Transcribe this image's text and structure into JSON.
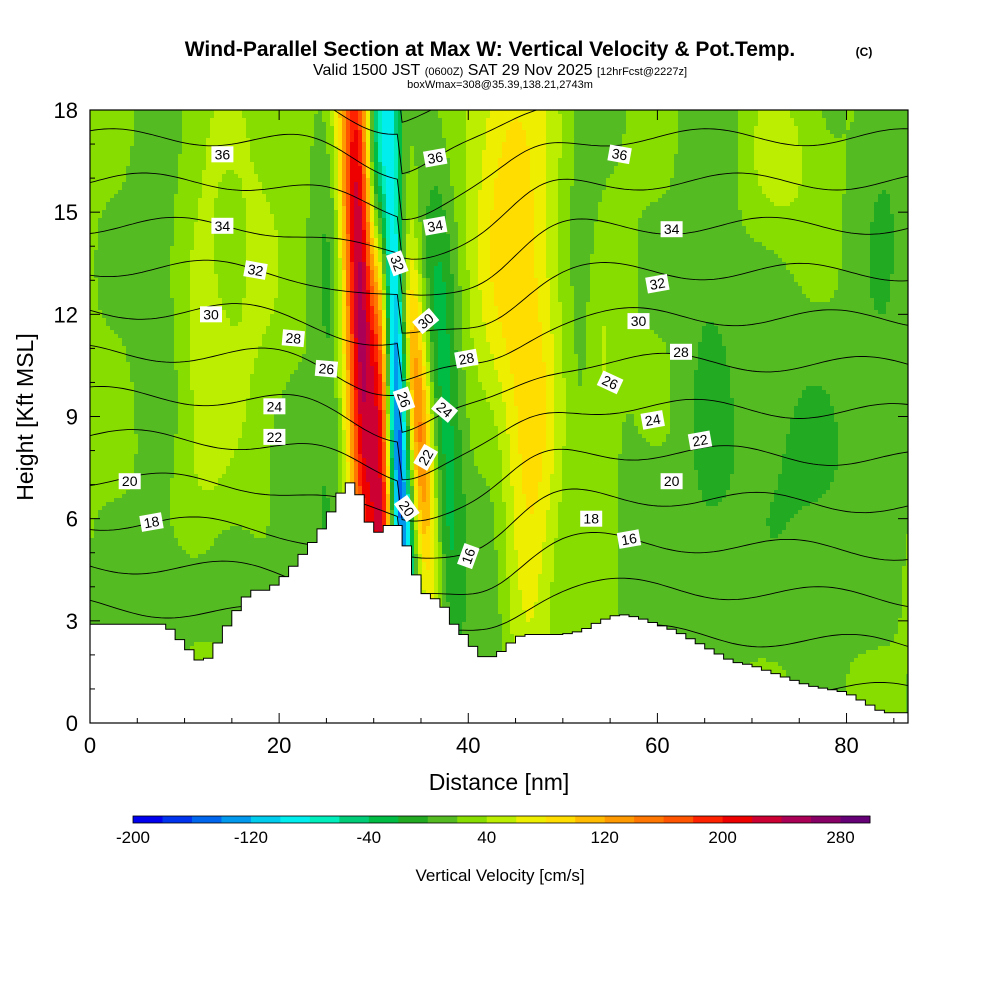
{
  "chart_data": {
    "type": "heatmap",
    "title": "Wind-Parallel Section at Max W: Vertical Velocity & Pot.Temp.",
    "title_mark": "(C)",
    "subtitle": {
      "valid": "Valid 1500 JST",
      "zulu": "(0600Z)",
      "date": "SAT 29 Nov 2025",
      "forecast": "[12hrFcst@2227z]",
      "box": "boxWmax=308@35.39,138.21,2743m"
    },
    "xlabel": "Distance [nm]",
    "ylabel": "Height [Kft MSL]",
    "xlim": [
      0,
      86.5
    ],
    "ylim": [
      0,
      18
    ],
    "x_ticks": [
      0,
      20,
      40,
      60,
      80
    ],
    "x_tick_labels": [
      "0",
      "20",
      "40",
      "60",
      "80"
    ],
    "y_ticks": [
      0,
      3,
      6,
      9,
      12,
      15,
      18
    ],
    "y_tick_labels": [
      "0",
      "3",
      "6",
      "9",
      "12",
      "15",
      "18"
    ],
    "colorbar": {
      "label": "Vertical Velocity [cm/s]",
      "min": -200,
      "max": 300,
      "step": 20,
      "tick_values": [
        -200,
        -120,
        -40,
        40,
        120,
        200,
        280
      ],
      "tick_labels": [
        "-200",
        "-120",
        "-40",
        "40",
        "120",
        "200",
        "280"
      ],
      "colors": [
        "#0000ee",
        "#0033ee",
        "#0066ee",
        "#0099ee",
        "#00ccee",
        "#00eeee",
        "#00eebb",
        "#00cc77",
        "#00bb44",
        "#22aa22",
        "#55bb22",
        "#88dd00",
        "#bbee00",
        "#eeee00",
        "#ffdd00",
        "#ffbb00",
        "#ff9900",
        "#ff7700",
        "#ff5500",
        "#ff2200",
        "#ee0000",
        "#cc0033",
        "#aa0055",
        "#880066",
        "#660077"
      ]
    },
    "terrain": [
      [
        0,
        2.9
      ],
      [
        2,
        2.9
      ],
      [
        4,
        2.9
      ],
      [
        6,
        2.9
      ],
      [
        8,
        2.9
      ],
      [
        9,
        2.6
      ],
      [
        10,
        2.3
      ],
      [
        11,
        2.0
      ],
      [
        12,
        1.7
      ],
      [
        13,
        2.1
      ],
      [
        14,
        2.6
      ],
      [
        15,
        3.1
      ],
      [
        16,
        3.5
      ],
      [
        17,
        3.9
      ],
      [
        18,
        3.9
      ],
      [
        19,
        3.9
      ],
      [
        20,
        4.2
      ],
      [
        21,
        4.4
      ],
      [
        22,
        4.8
      ],
      [
        23,
        5.1
      ],
      [
        24,
        5.5
      ],
      [
        25,
        5.9
      ],
      [
        26,
        6.5
      ],
      [
        27,
        7.0
      ],
      [
        28,
        7.1
      ],
      [
        29,
        6.3
      ],
      [
        30,
        5.5
      ],
      [
        31,
        5.7
      ],
      [
        32,
        5.9
      ],
      [
        33,
        5.7
      ],
      [
        34,
        4.7
      ],
      [
        35,
        4.0
      ],
      [
        36,
        3.6
      ],
      [
        37,
        3.7
      ],
      [
        38,
        3.1
      ],
      [
        39,
        2.7
      ],
      [
        40,
        2.5
      ],
      [
        41,
        2.0
      ],
      [
        42,
        1.9
      ],
      [
        43,
        2.0
      ],
      [
        44,
        2.2
      ],
      [
        45,
        2.5
      ],
      [
        46,
        2.6
      ],
      [
        48,
        2.6
      ],
      [
        50,
        2.6
      ],
      [
        52,
        2.7
      ],
      [
        54,
        3.0
      ],
      [
        56,
        3.2
      ],
      [
        58,
        3.1
      ],
      [
        60,
        2.9
      ],
      [
        62,
        2.7
      ],
      [
        64,
        2.4
      ],
      [
        66,
        2.1
      ],
      [
        68,
        1.8
      ],
      [
        70,
        1.7
      ],
      [
        72,
        1.5
      ],
      [
        74,
        1.3
      ],
      [
        76,
        1.1
      ],
      [
        78,
        1.0
      ],
      [
        80,
        0.9
      ],
      [
        82,
        0.6
      ],
      [
        84,
        0.3
      ],
      [
        86.5,
        0.3
      ]
    ],
    "w_features": [
      {
        "x": 28.7,
        "y": 12.0,
        "sx": 1.3,
        "sy": 8.0,
        "w": 230,
        "tilt": -0.12
      },
      {
        "x": 31.0,
        "y": 11.0,
        "sx": 0.8,
        "sy": 9.0,
        "w": 170,
        "tilt": -0.05
      },
      {
        "x": 32.2,
        "y": 10.5,
        "sx": 1.0,
        "sy": 8.5,
        "w": -230,
        "tilt": -0.12
      },
      {
        "x": 30.3,
        "y": 16.5,
        "sx": 0.8,
        "sy": 3.0,
        "w": -140,
        "tilt": 0.0
      },
      {
        "x": 34.6,
        "y": 9.0,
        "sx": 1.1,
        "sy": 4.0,
        "w": 140,
        "tilt": -0.25
      },
      {
        "x": 37.5,
        "y": 9.0,
        "sx": 1.4,
        "sy": 5.0,
        "w": -60,
        "tilt": -0.15
      },
      {
        "x": 44.5,
        "y": 14.5,
        "sx": 3.0,
        "sy": 6.0,
        "w": 70,
        "tilt": 0.0
      },
      {
        "x": 47.0,
        "y": 6.5,
        "sx": 1.8,
        "sy": 5.0,
        "w": 40,
        "tilt": 0.1
      },
      {
        "x": 42.5,
        "y": 5.0,
        "sx": 1.5,
        "sy": 3.5,
        "w": -30,
        "tilt": 0.0
      },
      {
        "x": 54.0,
        "y": 9.5,
        "sx": 1.2,
        "sy": 3.5,
        "w": 30,
        "tilt": 0.0
      },
      {
        "x": 52.5,
        "y": 14.0,
        "sx": 1.5,
        "sy": 4.0,
        "w": -20,
        "tilt": 0.0
      },
      {
        "x": 12.0,
        "y": 10.5,
        "sx": 2.0,
        "sy": 6.0,
        "w": 25,
        "tilt": 0.0
      },
      {
        "x": 17.5,
        "y": 13.0,
        "sx": 2.5,
        "sy": 7.0,
        "w": 20,
        "tilt": 0.0
      },
      {
        "x": 7.0,
        "y": 13.5,
        "sx": 1.8,
        "sy": 4.0,
        "w": -20,
        "tilt": 0.0
      },
      {
        "x": 22.0,
        "y": 7.0,
        "sx": 3.0,
        "sy": 2.0,
        "w": -18,
        "tilt": 0.0
      },
      {
        "x": 13.0,
        "y": 4.0,
        "sx": 6.0,
        "sy": 1.5,
        "w": -22,
        "tilt": 0.0
      },
      {
        "x": 25.5,
        "y": 13.0,
        "sx": 1.2,
        "sy": 5.0,
        "w": -28,
        "tilt": 0.0
      },
      {
        "x": 65.5,
        "y": 12.0,
        "sx": 2.0,
        "sy": 7.0,
        "w": -22,
        "tilt": 0.0
      },
      {
        "x": 75.0,
        "y": 7.5,
        "sx": 6.0,
        "sy": 3.0,
        "w": -25,
        "tilt": 0.0
      },
      {
        "x": 73.0,
        "y": 16.5,
        "sx": 2.5,
        "sy": 1.5,
        "w": 30,
        "tilt": 0.0
      },
      {
        "x": 84.0,
        "y": 15.0,
        "sx": 2.0,
        "sy": 4.0,
        "w": -22,
        "tilt": 0.0
      },
      {
        "x": 58.5,
        "y": 5.5,
        "sx": 3.0,
        "sy": 2.0,
        "w": -15,
        "tilt": 0.0
      }
    ],
    "theta_levels": [
      14,
      15,
      16,
      17,
      18,
      19,
      20,
      21,
      22,
      23,
      24,
      25,
      26,
      27,
      28,
      29,
      30,
      31,
      32,
      33,
      34,
      35,
      36,
      37
    ],
    "theta_labels": [
      {
        "text": "36",
        "x": 14.0,
        "y": 16.7,
        "rot": 0
      },
      {
        "text": "34",
        "x": 14.0,
        "y": 14.6,
        "rot": 0
      },
      {
        "text": "32",
        "x": 17.5,
        "y": 13.3,
        "rot": 10
      },
      {
        "text": "30",
        "x": 12.8,
        "y": 12.0,
        "rot": 0
      },
      {
        "text": "28",
        "x": 21.5,
        "y": 11.3,
        "rot": 5
      },
      {
        "text": "26",
        "x": 25.0,
        "y": 10.4,
        "rot": 5
      },
      {
        "text": "24",
        "x": 19.5,
        "y": 9.3,
        "rot": 0
      },
      {
        "text": "22",
        "x": 19.5,
        "y": 8.4,
        "rot": 0
      },
      {
        "text": "20",
        "x": 4.2,
        "y": 7.1,
        "rot": 0
      },
      {
        "text": "18",
        "x": 6.5,
        "y": 5.9,
        "rot": -10
      },
      {
        "text": "36",
        "x": 36.5,
        "y": 16.6,
        "rot": -10
      },
      {
        "text": "34",
        "x": 36.5,
        "y": 14.6,
        "rot": -10
      },
      {
        "text": "32",
        "x": 32.5,
        "y": 13.5,
        "rot": 70
      },
      {
        "text": "30",
        "x": 35.5,
        "y": 11.8,
        "rot": -40
      },
      {
        "text": "28",
        "x": 39.8,
        "y": 10.7,
        "rot": -10
      },
      {
        "text": "26",
        "x": 33.2,
        "y": 9.5,
        "rot": 70
      },
      {
        "text": "24",
        "x": 37.5,
        "y": 9.2,
        "rot": 40
      },
      {
        "text": "22",
        "x": 35.5,
        "y": 7.8,
        "rot": -60
      },
      {
        "text": "20",
        "x": 33.5,
        "y": 6.3,
        "rot": 55
      },
      {
        "text": "16",
        "x": 40.0,
        "y": 4.9,
        "rot": -70
      },
      {
        "text": "36",
        "x": 56.0,
        "y": 16.7,
        "rot": 10
      },
      {
        "text": "34",
        "x": 61.5,
        "y": 14.5,
        "rot": 0
      },
      {
        "text": "32",
        "x": 60.0,
        "y": 12.9,
        "rot": -10
      },
      {
        "text": "30",
        "x": 58.0,
        "y": 11.8,
        "rot": 0
      },
      {
        "text": "28",
        "x": 62.5,
        "y": 10.9,
        "rot": 0
      },
      {
        "text": "26",
        "x": 55.0,
        "y": 10.0,
        "rot": 25
      },
      {
        "text": "24",
        "x": 59.5,
        "y": 8.9,
        "rot": -10
      },
      {
        "text": "22",
        "x": 64.5,
        "y": 8.3,
        "rot": -10
      },
      {
        "text": "20",
        "x": 61.5,
        "y": 7.1,
        "rot": 0
      },
      {
        "text": "18",
        "x": 53.0,
        "y": 6.0,
        "rot": 0
      },
      {
        "text": "16",
        "x": 57.0,
        "y": 5.4,
        "rot": -10
      }
    ]
  }
}
